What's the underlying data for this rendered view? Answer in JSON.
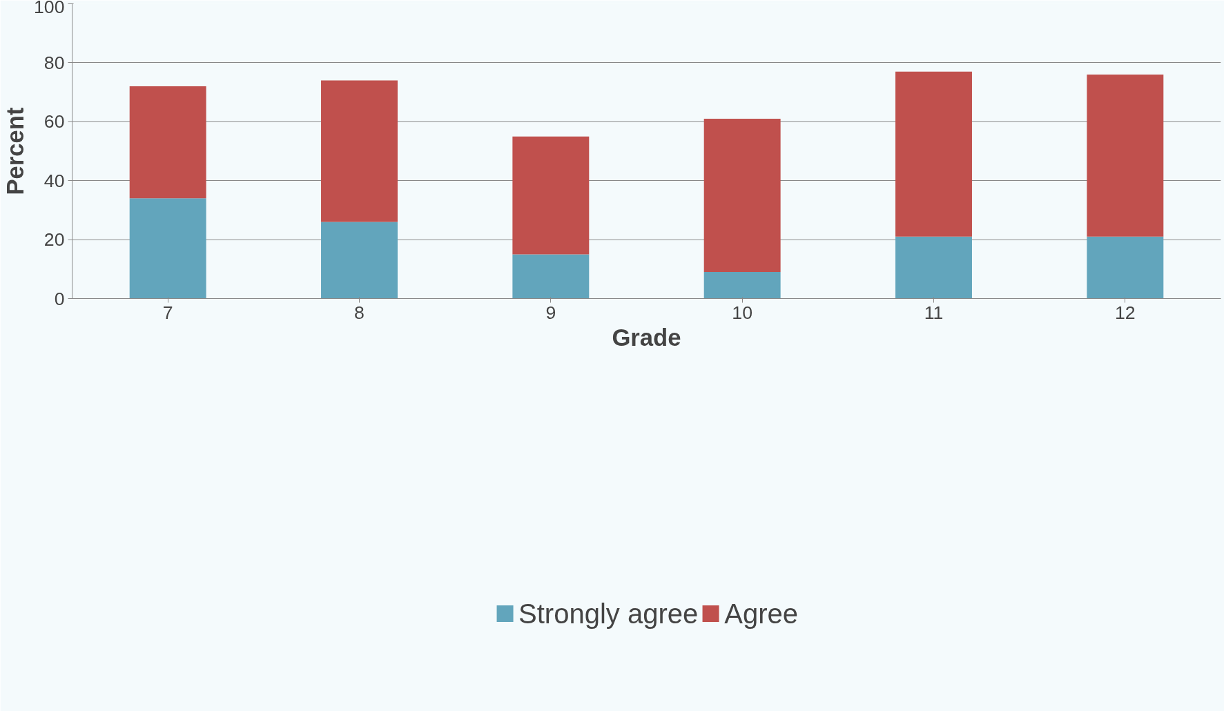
{
  "chart_data": {
    "type": "bar",
    "stacked": true,
    "xlabel": "Grade",
    "ylabel": "Percent",
    "categories": [
      "7",
      "8",
      "9",
      "10",
      "11",
      "12"
    ],
    "series": [
      {
        "name": "Strongly agree",
        "color": "#62a5bc",
        "values": [
          34,
          26,
          15,
          9,
          21,
          21
        ]
      },
      {
        "name": "Agree",
        "color": "#c0504d",
        "values": [
          38,
          48,
          40,
          52,
          56,
          55
        ]
      }
    ],
    "ylim": [
      0,
      100
    ],
    "yticks": [
      0,
      20,
      40,
      60,
      80,
      100
    ],
    "grid": "y",
    "legend": "bottom"
  }
}
